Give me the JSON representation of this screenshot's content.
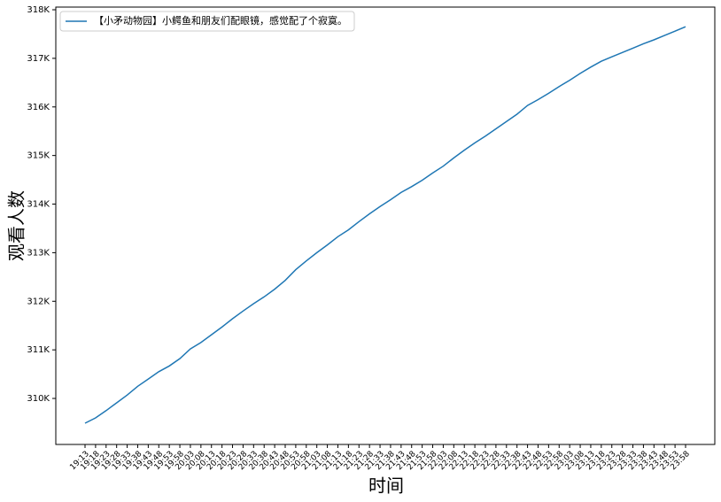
{
  "chart_data": {
    "type": "line",
    "xlabel": "时间",
    "ylabel": "观看人数",
    "categories": [
      "19:13",
      "19:18",
      "19:23",
      "19:28",
      "19:33",
      "19:38",
      "19:43",
      "19:48",
      "19:53",
      "19:58",
      "20:03",
      "20:08",
      "20:13",
      "20:18",
      "20:23",
      "20:28",
      "20:33",
      "20:38",
      "20:43",
      "20:48",
      "20:53",
      "20:58",
      "21:03",
      "21:08",
      "21:13",
      "21:18",
      "21:23",
      "21:28",
      "21:33",
      "21:38",
      "21:43",
      "21:48",
      "21:53",
      "21:58",
      "22:03",
      "22:08",
      "22:13",
      "22:18",
      "22:23",
      "22:28",
      "22:33",
      "22:38",
      "22:43",
      "22:48",
      "22:53",
      "22:58",
      "23:03",
      "23:08",
      "23:13",
      "23:18",
      "23:23",
      "23:28",
      "23:33",
      "23:38",
      "23:43",
      "23:48",
      "23:53",
      "23:58"
    ],
    "series": [
      {
        "name": "【小矛动物园】小鳄鱼和朋友们配眼镜，感觉配了个寂寞。",
        "color": "#1f77b4",
        "values": [
          309490,
          309600,
          309750,
          309910,
          310070,
          310250,
          310400,
          310550,
          310670,
          310820,
          311020,
          311150,
          311310,
          311470,
          311640,
          311800,
          311950,
          312090,
          312250,
          312430,
          312650,
          312830,
          313000,
          313160,
          313330,
          313470,
          313640,
          313800,
          313950,
          314090,
          314240,
          314360,
          314490,
          314640,
          314780,
          314950,
          315110,
          315260,
          315400,
          315550,
          315700,
          315850,
          316030,
          316150,
          316280,
          316420,
          316550,
          316690,
          316820,
          316940,
          317030,
          317120,
          317210,
          317300,
          317380,
          317470,
          317560,
          317650
        ]
      }
    ],
    "ylim": [
      309053,
      318055
    ],
    "yticks": [
      {
        "value": 310000,
        "label": "310K"
      },
      {
        "value": 311000,
        "label": "311K"
      },
      {
        "value": 312000,
        "label": "312K"
      },
      {
        "value": 313000,
        "label": "313K"
      },
      {
        "value": 314000,
        "label": "314K"
      },
      {
        "value": 315000,
        "label": "315K"
      },
      {
        "value": 316000,
        "label": "316K"
      },
      {
        "value": 317000,
        "label": "317K"
      },
      {
        "value": 318000,
        "label": "318K"
      }
    ],
    "grid": false,
    "legend": "upper left"
  }
}
